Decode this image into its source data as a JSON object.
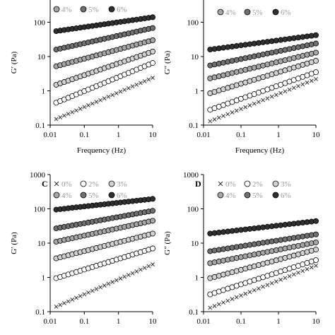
{
  "chart_data": [
    {
      "panel": "A",
      "panel_label_visible": false,
      "type": "scatter",
      "xscale": "log",
      "yscale": "log",
      "xlim": [
        0.01,
        10
      ],
      "ylim": [
        0.1,
        1000
      ],
      "xticks": [
        "0.01",
        "0.1",
        "1",
        "10"
      ],
      "yticks": [
        "0.1",
        "1",
        "10",
        "100"
      ],
      "xlabel": "Frequency (Hz)",
      "ylabel": "G′ (Pa)",
      "legend": [
        "4%",
        "5%",
        "6%"
      ],
      "series": [
        {
          "name": "0%",
          "marker": "x",
          "y_start": 0.15,
          "y_end": 2.4
        },
        {
          "name": "2%",
          "marker": "white",
          "y_start": 0.45,
          "y_end": 6.5
        },
        {
          "name": "3%",
          "marker": "light-gray",
          "y_start": 1.5,
          "y_end": 14
        },
        {
          "name": "4%",
          "marker": "gray",
          "y_start": 5.2,
          "y_end": 30
        },
        {
          "name": "5%",
          "marker": "dark-gray",
          "y_start": 16,
          "y_end": 68
        },
        {
          "name": "6%",
          "marker": "black",
          "y_start": 55,
          "y_end": 140
        }
      ]
    },
    {
      "panel": "B",
      "panel_label_visible": false,
      "type": "scatter",
      "xscale": "log",
      "yscale": "log",
      "xlim": [
        0.01,
        10
      ],
      "ylim": [
        0.1,
        1000
      ],
      "xticks": [
        "0.01",
        "0.1",
        "1",
        "10"
      ],
      "yticks": [
        "0.1",
        "1",
        "10",
        "100"
      ],
      "xlabel": "Frequency (Hz)",
      "ylabel": "G″ (Pa)",
      "legend": [
        "4%",
        "5%",
        "6%"
      ],
      "series": [
        {
          "name": "0%",
          "marker": "x",
          "y_start": 0.13,
          "y_end": 2.2
        },
        {
          "name": "2%",
          "marker": "white",
          "y_start": 0.28,
          "y_end": 3.5
        },
        {
          "name": "3%",
          "marker": "light-gray",
          "y_start": 0.85,
          "y_end": 7.5
        },
        {
          "name": "4%",
          "marker": "gray",
          "y_start": 2.3,
          "y_end": 13
        },
        {
          "name": "5%",
          "marker": "dark-gray",
          "y_start": 5.5,
          "y_end": 24
        },
        {
          "name": "6%",
          "marker": "black",
          "y_start": 16,
          "y_end": 42
        }
      ]
    },
    {
      "panel": "C",
      "panel_label_visible": true,
      "type": "scatter",
      "xscale": "log",
      "yscale": "log",
      "xlim": [
        0.01,
        10
      ],
      "ylim": [
        0.1,
        1000
      ],
      "xticks": [
        "0.01",
        "0.1",
        "1",
        "10"
      ],
      "yticks": [
        "0.1",
        "1",
        "10",
        "100",
        "1000"
      ],
      "xlabel": "",
      "ylabel": "G′ (Pa)",
      "legend": [
        "0%",
        "2%",
        "3%",
        "4%",
        "5%",
        "6%"
      ],
      "series": [
        {
          "name": "0%",
          "marker": "x",
          "y_start": 0.14,
          "y_end": 2.4
        },
        {
          "name": "2%",
          "marker": "white",
          "y_start": 0.95,
          "y_end": 7
        },
        {
          "name": "3%",
          "marker": "light-gray",
          "y_start": 3.6,
          "y_end": 19
        },
        {
          "name": "4%",
          "marker": "gray",
          "y_start": 11,
          "y_end": 45
        },
        {
          "name": "5%",
          "marker": "dark-gray",
          "y_start": 27,
          "y_end": 88
        },
        {
          "name": "6%",
          "marker": "black",
          "y_start": 95,
          "y_end": 195
        }
      ]
    },
    {
      "panel": "D",
      "panel_label_visible": true,
      "type": "scatter",
      "xscale": "log",
      "yscale": "log",
      "xlim": [
        0.01,
        10
      ],
      "ylim": [
        0.1,
        1000
      ],
      "xticks": [
        "0.01",
        "0.1",
        "1",
        "10"
      ],
      "yticks": [
        "0.1",
        "1",
        "10",
        "100",
        "1000"
      ],
      "xlabel": "",
      "ylabel": "G″ (Pa)",
      "legend": [
        "0%",
        "2%",
        "3%",
        "4%",
        "5%",
        "6%"
      ],
      "series": [
        {
          "name": "0%",
          "marker": "x",
          "y_start": 0.13,
          "y_end": 2.2
        },
        {
          "name": "2%",
          "marker": "white",
          "y_start": 0.32,
          "y_end": 3.2
        },
        {
          "name": "3%",
          "marker": "light-gray",
          "y_start": 0.95,
          "y_end": 6.5
        },
        {
          "name": "4%",
          "marker": "gray",
          "y_start": 2.6,
          "y_end": 10.5
        },
        {
          "name": "5%",
          "marker": "dark-gray",
          "y_start": 5.8,
          "y_end": 18
        },
        {
          "name": "6%",
          "marker": "black",
          "y_start": 19,
          "y_end": 44
        }
      ]
    }
  ],
  "colors": {
    "white": "#ffffff",
    "light-gray": "#d0d0d0",
    "gray": "#a6a6a6",
    "dark-gray": "#707070",
    "black": "#303030",
    "x": "#333333",
    "legend_text": "#9a9a9a",
    "axis": "#000000"
  }
}
